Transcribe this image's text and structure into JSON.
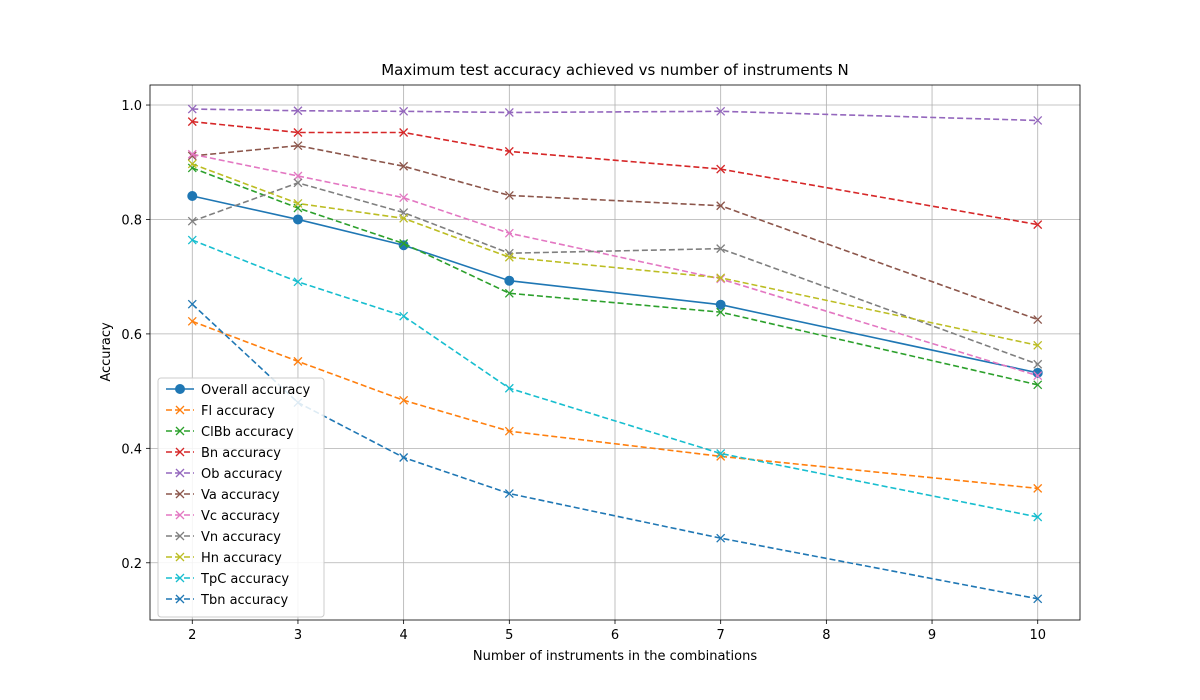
{
  "chart_data": {
    "type": "line",
    "title": "Maximum test accuracy achieved vs number of instruments N",
    "xlabel": "Number of instruments in the combinations",
    "ylabel": "Accuracy",
    "xlim": [
      1.6,
      10.4
    ],
    "ylim": [
      0.1,
      1.035
    ],
    "xticks": [
      2,
      3,
      4,
      5,
      6,
      7,
      8,
      9,
      10
    ],
    "yticks": [
      0.2,
      0.4,
      0.6,
      0.8,
      1.0
    ],
    "x": [
      2,
      3,
      4,
      5,
      7,
      10
    ],
    "grid": true,
    "legend_position": "lower-left",
    "series": [
      {
        "name": "Overall accuracy",
        "values": [
          0.841,
          0.8,
          0.755,
          0.693,
          0.651,
          0.532
        ],
        "color": "#1f77b4",
        "dashed": false,
        "marker": "circle"
      },
      {
        "name": "Fl accuracy",
        "values": [
          0.622,
          0.552,
          0.484,
          0.43,
          0.386,
          0.33
        ],
        "color": "#ff7f0e",
        "dashed": true,
        "marker": "x"
      },
      {
        "name": "ClBb accuracy",
        "values": [
          0.89,
          0.82,
          0.758,
          0.671,
          0.638,
          0.511
        ],
        "color": "#2ca02c",
        "dashed": true,
        "marker": "x"
      },
      {
        "name": "Bn accuracy",
        "values": [
          0.971,
          0.952,
          0.952,
          0.919,
          0.888,
          0.791
        ],
        "color": "#d62728",
        "dashed": true,
        "marker": "x"
      },
      {
        "name": "Ob accuracy",
        "values": [
          0.993,
          0.99,
          0.989,
          0.987,
          0.989,
          0.973
        ],
        "color": "#9467bd",
        "dashed": true,
        "marker": "x"
      },
      {
        "name": "Va accuracy",
        "values": [
          0.911,
          0.929,
          0.893,
          0.842,
          0.824,
          0.625
        ],
        "color": "#8c564b",
        "dashed": true,
        "marker": "x"
      },
      {
        "name": "Vc accuracy",
        "values": [
          0.914,
          0.876,
          0.838,
          0.776,
          0.696,
          0.527
        ],
        "color": "#e377c2",
        "dashed": true,
        "marker": "x"
      },
      {
        "name": "Vn accuracy",
        "values": [
          0.797,
          0.864,
          0.812,
          0.741,
          0.749,
          0.547
        ],
        "color": "#7f7f7f",
        "dashed": true,
        "marker": "x"
      },
      {
        "name": "Hn accuracy",
        "values": [
          0.897,
          0.828,
          0.802,
          0.734,
          0.698,
          0.58
        ],
        "color": "#bcbd22",
        "dashed": true,
        "marker": "x"
      },
      {
        "name": "TpC accuracy",
        "values": [
          0.764,
          0.691,
          0.631,
          0.505,
          0.391,
          0.28
        ],
        "color": "#17becf",
        "dashed": true,
        "marker": "x"
      },
      {
        "name": "Tbn accuracy",
        "values": [
          0.652,
          0.48,
          0.384,
          0.321,
          0.243,
          0.137
        ],
        "color": "#1f77b4",
        "dashed": true,
        "marker": "x"
      }
    ]
  }
}
